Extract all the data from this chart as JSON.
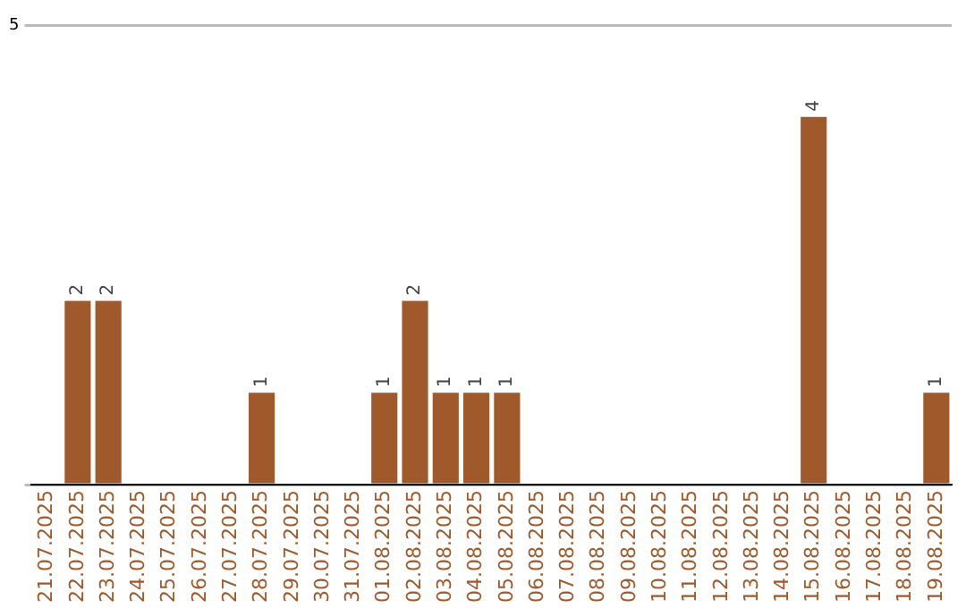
{
  "chart_data": {
    "type": "bar",
    "categories": [
      "21.07.2025",
      "22.07.2025",
      "23.07.2025",
      "24.07.2025",
      "25.07.2025",
      "26.07.2025",
      "27.07.2025",
      "28.07.2025",
      "29.07.2025",
      "30.07.2025",
      "31.07.2025",
      "01.08.2025",
      "02.08.2025",
      "03.08.2025",
      "04.08.2025",
      "05.08.2025",
      "06.08.2025",
      "07.08.2025",
      "08.08.2025",
      "09.08.2025",
      "10.08.2025",
      "11.08.2025",
      "12.08.2025",
      "13.08.2025",
      "14.08.2025",
      "15.08.2025",
      "16.08.2025",
      "17.08.2025",
      "18.08.2025",
      "19.08.2025"
    ],
    "values": [
      0,
      2,
      2,
      0,
      0,
      0,
      0,
      1,
      0,
      0,
      0,
      1,
      2,
      1,
      1,
      1,
      0,
      0,
      0,
      0,
      0,
      0,
      0,
      0,
      0,
      4,
      0,
      0,
      0,
      1
    ],
    "value_labels": [
      null,
      "2",
      "2",
      null,
      null,
      null,
      null,
      "1",
      null,
      null,
      null,
      "1",
      "2",
      "1",
      "1",
      "1",
      null,
      null,
      null,
      null,
      null,
      null,
      null,
      null,
      null,
      "4",
      null,
      null,
      null,
      "1"
    ],
    "color": "#a0592a",
    "ylim": [
      0,
      5
    ],
    "yticks": [
      {
        "value": 0,
        "label": null
      },
      5
    ],
    "grid": "y",
    "legend": false
  }
}
